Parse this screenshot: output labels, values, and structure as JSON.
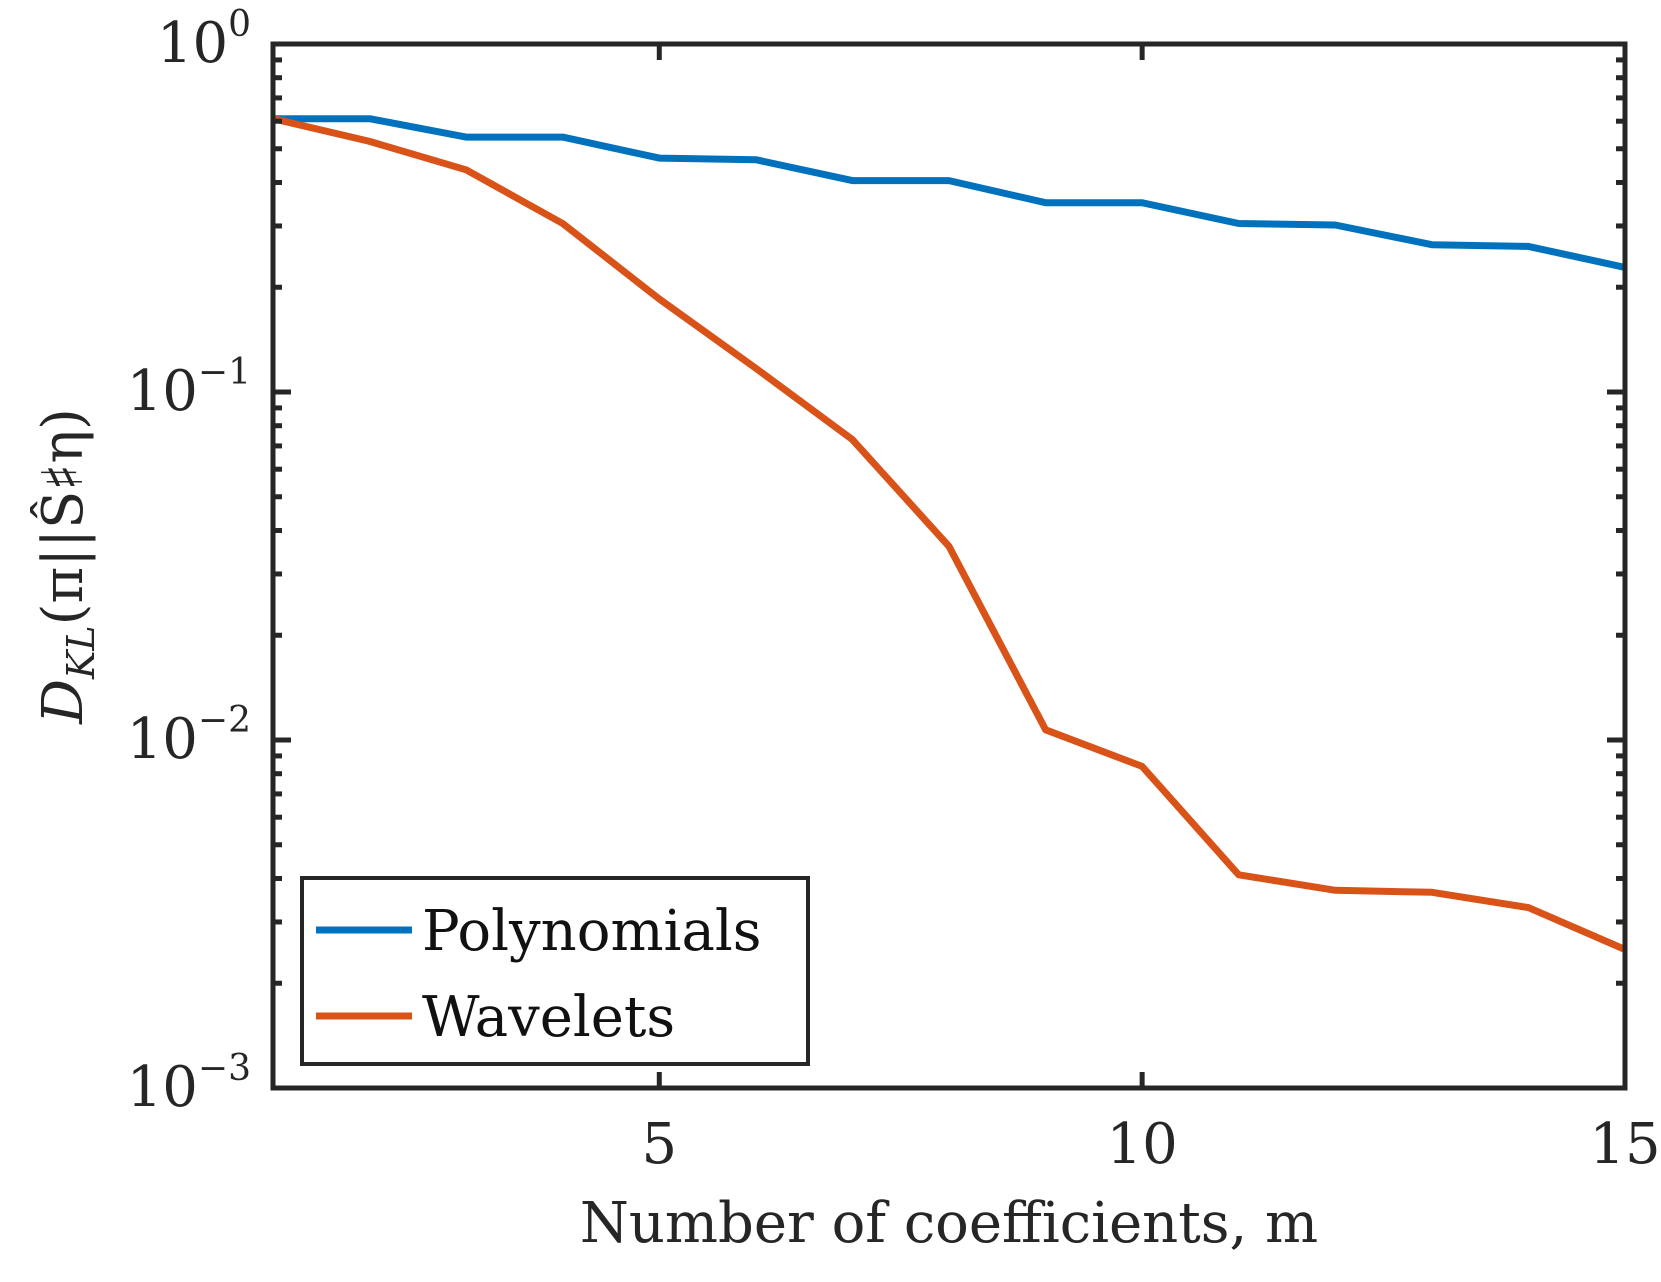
{
  "chart_data": {
    "type": "line",
    "title": "",
    "xlabel": "Number of coefficients, m",
    "ylabel": "D_KL(π||Ŝ♯η)",
    "ylabel_parts": {
      "main": "D",
      "sub": "KL",
      "args": "(π||Ŝ♯η)"
    },
    "xscale": "linear",
    "yscale": "log",
    "xlim": [
      1,
      15
    ],
    "ylim": [
      0.001,
      1
    ],
    "xticks": [
      5,
      10,
      15
    ],
    "xtick_labels": [
      "5",
      "10",
      "15"
    ],
    "yticks": [
      0.001,
      0.01,
      0.1,
      1
    ],
    "ytick_labels": [
      {
        "base": "10",
        "exp": "−3"
      },
      {
        "base": "10",
        "exp": "−2"
      },
      {
        "base": "10",
        "exp": "−1"
      },
      {
        "base": "10",
        "exp": "0"
      }
    ],
    "grid": false,
    "legend_position": "bottom-left",
    "x": [
      1,
      2,
      3,
      4,
      5,
      6,
      7,
      8,
      9,
      10,
      11,
      12,
      13,
      14,
      15
    ],
    "series": [
      {
        "name": "Polynomials",
        "color": "#0072BD",
        "values": [
          0.61,
          0.61,
          0.54,
          0.54,
          0.47,
          0.465,
          0.405,
          0.405,
          0.35,
          0.35,
          0.305,
          0.302,
          0.265,
          0.262,
          0.228
        ]
      },
      {
        "name": "Wavelets",
        "color": "#D95319",
        "values": [
          0.61,
          0.525,
          0.435,
          0.305,
          0.185,
          0.117,
          0.073,
          0.036,
          0.0107,
          0.0084,
          0.0041,
          0.0037,
          0.00365,
          0.0033,
          0.0025
        ]
      }
    ]
  }
}
